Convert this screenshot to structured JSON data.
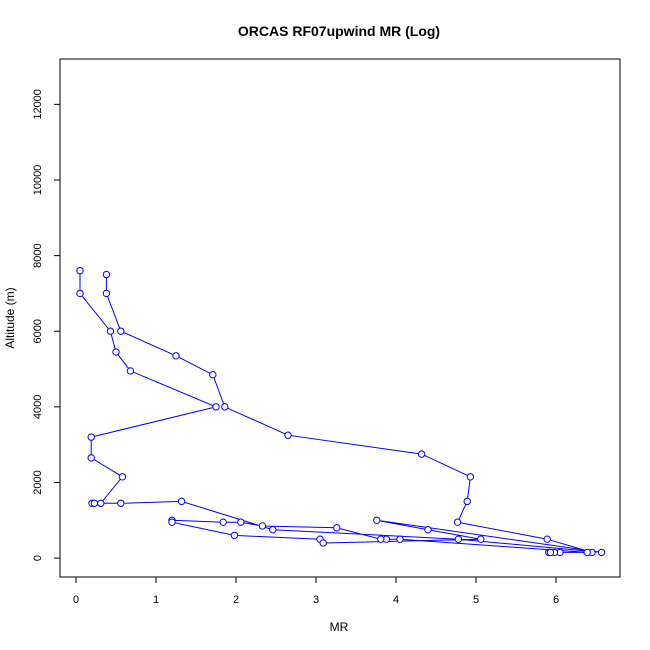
{
  "colors": {
    "series": "#0000ff",
    "axis": "#000000",
    "background": "#ffffff"
  },
  "chart_data": {
    "type": "line",
    "title": "ORCAS RF07upwind MR (Log)",
    "xlabel": "MR",
    "ylabel": "Altitude (m)",
    "xlim": [
      -0.2,
      6.8
    ],
    "ylim": [
      -500,
      13200
    ],
    "xticks": [
      0,
      1,
      2,
      3,
      4,
      5,
      6
    ],
    "yticks": [
      0,
      2000,
      4000,
      6000,
      8000,
      10000,
      12000
    ],
    "xtick_labels": [
      "0",
      "1",
      "2",
      "3",
      "4",
      "5",
      "6"
    ],
    "ytick_labels": [
      "0",
      "2000",
      "4000",
      "6000",
      "8000",
      "10000",
      "12000"
    ],
    "markers": "open-circle",
    "series": [
      {
        "x": [
          0.38,
          0.38,
          0.56,
          1.25,
          1.71,
          1.86,
          2.65,
          4.32,
          4.93,
          4.89,
          4.77,
          5.89,
          6.45,
          6.05,
          5.98,
          5.91,
          5.93,
          6.39,
          4.05,
          3.88,
          3.81,
          3.26,
          2.33,
          2.06,
          1.84,
          1.2,
          1.2,
          1.98,
          3.05,
          3.09,
          5.06,
          4.4,
          3.76,
          6.57,
          4.78,
          2.46,
          1.32,
          0.56,
          0.2,
          0.23,
          0.31,
          0.58,
          0.19,
          0.19,
          1.75,
          0.68,
          0.5,
          0.43,
          0.05,
          0.05
        ],
        "y": [
          7500,
          7000,
          6000,
          5350,
          4850,
          4000,
          3250,
          2750,
          2150,
          1500,
          950,
          500,
          150,
          150,
          150,
          150,
          150,
          150,
          500,
          500,
          500,
          800,
          850,
          950,
          950,
          1000,
          950,
          600,
          500,
          400,
          500,
          750,
          1000,
          150,
          500,
          750,
          1500,
          1450,
          1450,
          1450,
          1450,
          2150,
          2650,
          3200,
          4000,
          4950,
          5450,
          6000,
          7000,
          7600
        ]
      }
    ]
  }
}
